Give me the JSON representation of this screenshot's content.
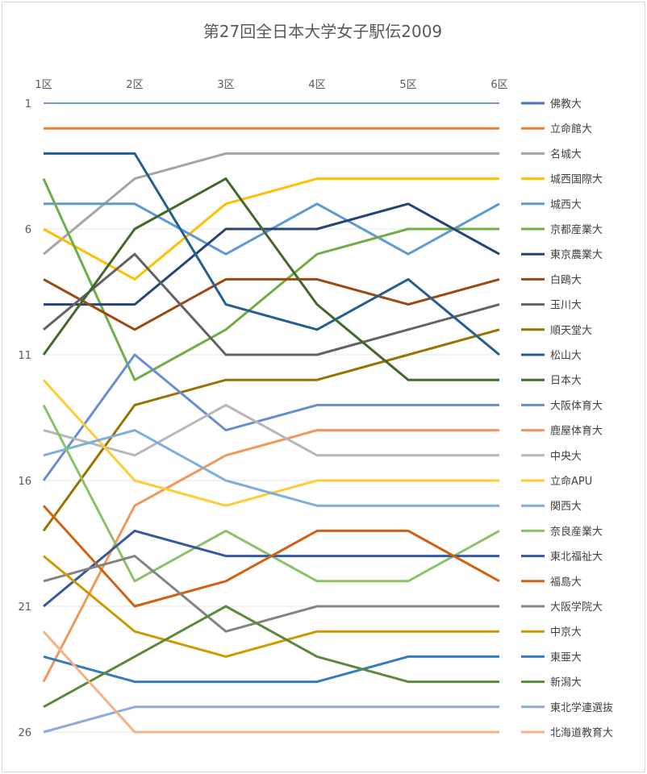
{
  "chart_data": {
    "type": "line",
    "title": "第27回全日本大学女子駅伝2009",
    "xlabel": "",
    "ylabel": "",
    "categories": [
      "1区",
      "2区",
      "3区",
      "4区",
      "5区",
      "6区"
    ],
    "y_ticks": [
      "1",
      "6",
      "11",
      "16",
      "21",
      "26"
    ],
    "ylim": [
      26,
      1
    ],
    "y_reversed": true,
    "grid": true,
    "legend_position": "right",
    "series": [
      {
        "name": "佛教大",
        "color": "#4472C4",
        "values": [
          1,
          1,
          1,
          1,
          1,
          1
        ]
      },
      {
        "name": "立命館大",
        "color": "#ED7D31",
        "values": [
          2,
          2,
          2,
          2,
          2,
          2
        ]
      },
      {
        "name": "名城大",
        "color": "#A5A5A5",
        "values": [
          7,
          4,
          3,
          3,
          3,
          3
        ]
      },
      {
        "name": "城西国際大",
        "color": "#FFC000",
        "values": [
          6,
          8,
          5,
          4,
          4,
          4
        ]
      },
      {
        "name": "城西大",
        "color": "#5B9BD5",
        "values": [
          5,
          5,
          7,
          5,
          7,
          5
        ]
      },
      {
        "name": "京都産業大",
        "color": "#70AD47",
        "values": [
          4,
          12,
          10,
          7,
          6,
          6
        ]
      },
      {
        "name": "東京農業大",
        "color": "#264478",
        "values": [
          9,
          9,
          6,
          6,
          5,
          7
        ]
      },
      {
        "name": "白鴎大",
        "color": "#9E480E",
        "values": [
          8,
          10,
          8,
          8,
          9,
          8
        ]
      },
      {
        "name": "玉川大",
        "color": "#636363",
        "values": [
          10,
          7,
          11,
          11,
          10,
          9
        ]
      },
      {
        "name": "順天堂大",
        "color": "#997300",
        "values": [
          18,
          13,
          12,
          12,
          11,
          10
        ]
      },
      {
        "name": "松山大",
        "color": "#255E91",
        "values": [
          3,
          3,
          9,
          10,
          8,
          11
        ]
      },
      {
        "name": "日本大",
        "color": "#43682B",
        "values": [
          11,
          6,
          4,
          9,
          12,
          12
        ]
      },
      {
        "name": "大阪体育大",
        "color": "#698ED0",
        "values": [
          16,
          11,
          14,
          13,
          13,
          13
        ]
      },
      {
        "name": "鹿屋体育大",
        "color": "#F1975A",
        "values": [
          24,
          17,
          15,
          14,
          14,
          14
        ]
      },
      {
        "name": "中央大",
        "color": "#B7B7B7",
        "values": [
          14,
          15,
          13,
          15,
          15,
          15
        ]
      },
      {
        "name": "立命APU",
        "color": "#FFCD33",
        "values": [
          12,
          16,
          17,
          16,
          16,
          16
        ]
      },
      {
        "name": "関西大",
        "color": "#7CAFDD",
        "values": [
          15,
          14,
          16,
          17,
          17,
          17
        ]
      },
      {
        "name": "奈良産業大",
        "color": "#8CC168",
        "values": [
          13,
          20,
          18,
          20,
          20,
          18
        ]
      },
      {
        "name": "東北福祉大",
        "color": "#335AA1",
        "values": [
          21,
          18,
          19,
          19,
          19,
          19
        ]
      },
      {
        "name": "福島大",
        "color": "#D26012",
        "values": [
          17,
          21,
          20,
          18,
          18,
          20
        ]
      },
      {
        "name": "大阪学院大",
        "color": "#848484",
        "values": [
          20,
          19,
          22,
          21,
          21,
          21
        ]
      },
      {
        "name": "中京大",
        "color": "#CC9A00",
        "values": [
          19,
          22,
          23,
          22,
          22,
          22
        ]
      },
      {
        "name": "東亜大",
        "color": "#327DC2",
        "values": [
          23,
          24,
          24,
          24,
          23,
          23
        ]
      },
      {
        "name": "新潟大",
        "color": "#5A8A39",
        "values": [
          25,
          23,
          21,
          23,
          24,
          24
        ]
      },
      {
        "name": "東北学連選抜",
        "color": "#8FAADC",
        "values": [
          26,
          25,
          25,
          25,
          25,
          25
        ]
      },
      {
        "name": "北海道教育大",
        "color": "#F4B183",
        "values": [
          22,
          26,
          26,
          26,
          26,
          26
        ]
      }
    ]
  }
}
